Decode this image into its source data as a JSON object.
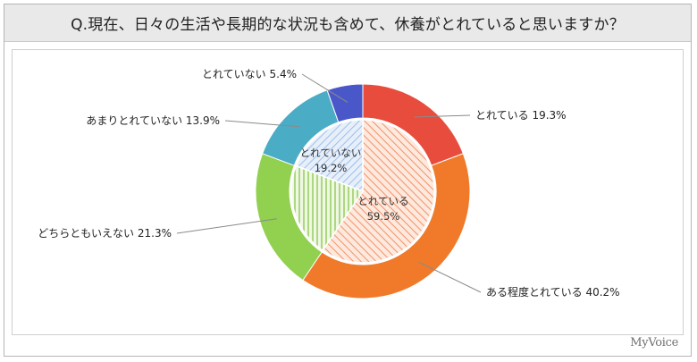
{
  "title": "Q.現在、日々の生活や長期的な状況も含めて、休養がとれていると思いますか？",
  "brand": "MyVoice",
  "chart_data": {
    "type": "pie",
    "outer_ring": {
      "labels": [
        "とれている",
        "ある程度とれている",
        "どちらともいえない",
        "あまりとれていない",
        "とれていない"
      ],
      "values": [
        19.3,
        40.2,
        21.3,
        13.9,
        5.4
      ],
      "display": [
        "とれている 19.3%",
        "ある程度とれている 40.2%",
        "どちらともいえない 21.3%",
        "あまりとれていない 13.9%",
        "とれていない 5.4%"
      ],
      "colors": [
        "#e84c3d",
        "#f07a2a",
        "#92d050",
        "#4bacc6",
        "#4a57c8"
      ]
    },
    "inner_ring": {
      "labels": [
        "とれている",
        "どちらともいえない",
        "とれていない"
      ],
      "values": [
        59.5,
        21.3,
        19.2
      ],
      "display_labels": [
        "とれている",
        "",
        "とれていない"
      ],
      "display_values": [
        "59.5%",
        "",
        "19.2%"
      ],
      "colors": [
        "#f4a582",
        "#b6dc82",
        "#a9c7e8"
      ],
      "patterns": [
        "diagonal",
        "vertical",
        "diagonal-reverse"
      ]
    }
  }
}
